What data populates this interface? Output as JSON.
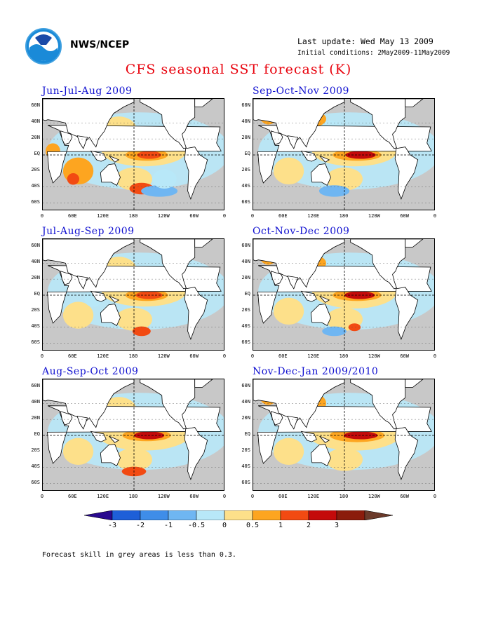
{
  "header": {
    "org": "NWS/NCEP",
    "last_update": "Last update: Wed May 13 2009",
    "initial_conditions": "Initial conditions: 2May2009-11May2009",
    "title": "CFS seasonal SST forecast (K)"
  },
  "logo": {
    "name": "noaa-logo"
  },
  "panels": [
    {
      "title": "Jun-Jul-Aug 2009"
    },
    {
      "title": "Sep-Oct-Nov 2009"
    },
    {
      "title": "Jul-Aug-Sep 2009"
    },
    {
      "title": "Oct-Nov-Dec 2009"
    },
    {
      "title": "Aug-Sep-Oct 2009"
    },
    {
      "title": "Nov-Dec-Jan 2009/2010"
    }
  ],
  "axes": {
    "lat_labels": [
      "60N",
      "40N",
      "20N",
      "EQ",
      "20S",
      "40S",
      "60S"
    ],
    "lon_labels": [
      "0",
      "60E",
      "120E",
      "180",
      "120W",
      "60W",
      "0"
    ]
  },
  "colorbar": {
    "labels": [
      "-3",
      "-2",
      "-1",
      "-0.5",
      "0",
      "0.5",
      "1",
      "2",
      "3"
    ],
    "colors": [
      "#2a0a8f",
      "#1e5fd8",
      "#3f8de8",
      "#6fb6f2",
      "#b8e8f8",
      "#fde08a",
      "#fda520",
      "#f24a12",
      "#c40a0a",
      "#8b1c0c",
      "#6b3a2a"
    ]
  },
  "footnote": "Forecast skill in grey areas is less than 0.3."
}
